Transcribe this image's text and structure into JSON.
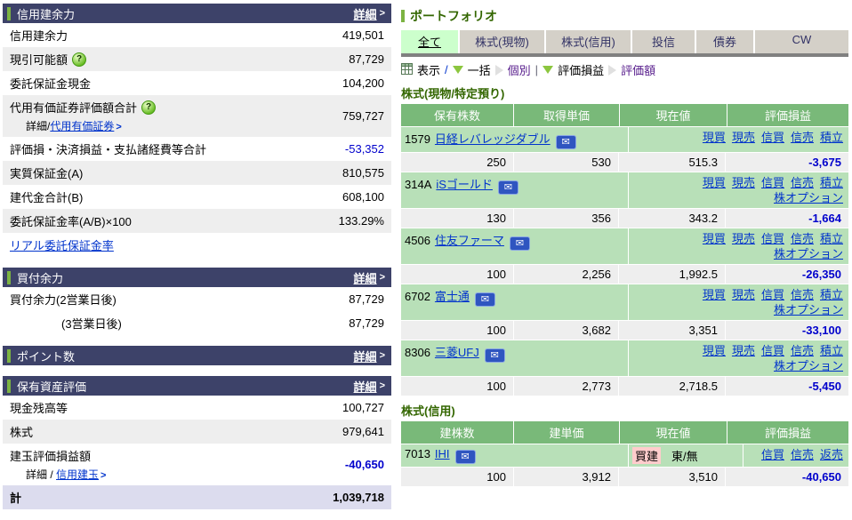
{
  "colors": {
    "header_navy": "#3d4269",
    "accent_green": "#7cb342",
    "link_blue": "#0033cc",
    "negative_blue": "#0000cc",
    "table_header_green": "#79b979",
    "name_row_green": "#b8e0b8",
    "row_gray": "#eeeeee",
    "total_row_lavender": "#dcdcee",
    "tab_selected_bg": "#ccffcc",
    "tab_bg": "#d4d0c8",
    "section_title_green": "#336600",
    "badge_pink": "#ffcccc"
  },
  "left_panel": {
    "sections": [
      {
        "title": "信用建余力",
        "detail_label": "詳細",
        "rows": [
          {
            "label": "信用建余力",
            "value": "419,501"
          },
          {
            "label": "現引可能額",
            "help": true,
            "value": "87,729",
            "shade": true
          },
          {
            "label": "委託保証金現金",
            "value": "104,200"
          },
          {
            "label": "代用有価証券評価額合計",
            "help": true,
            "value": "759,727",
            "shade": true,
            "sub_prefix": "詳細/",
            "sub_link": "代用有価証券"
          },
          {
            "label": "評価損・決済損益・支払諸経費等合計",
            "value": "-53,352",
            "neg": true
          },
          {
            "label": "実質保証金(A)",
            "value": "810,575",
            "shade": true
          },
          {
            "label": "建代金合計(B)",
            "value": "608,100"
          },
          {
            "label": "委託保証金率(A/B)×100",
            "value": "133.29%",
            "shade": true
          },
          {
            "link_label": "リアル委託保証金率"
          }
        ]
      },
      {
        "title": "買付余力",
        "detail_label": "詳細",
        "rows": [
          {
            "label": "買付余力(2営業日後)",
            "value": "87,729"
          },
          {
            "label": "(3営業日後)",
            "value": "87,729",
            "indent": true
          }
        ]
      },
      {
        "title": "ポイント数",
        "detail_label": "詳細",
        "rows": []
      },
      {
        "title": "保有資産評価",
        "detail_label": "詳細",
        "rows": [
          {
            "label": "現金残高等",
            "value": "100,727"
          },
          {
            "label": "株式",
            "value": "979,641",
            "shade": true
          },
          {
            "label": "建玉評価損益額",
            "value": "-40,650",
            "neg": true,
            "bold": true,
            "sub_prefix": "詳細 / ",
            "sub_link": "信用建玉"
          },
          {
            "label": "計",
            "value": "1,039,718",
            "total": true
          }
        ]
      }
    ]
  },
  "portfolio": {
    "title": "ポートフォリオ",
    "tabs": [
      {
        "label": "全て",
        "selected": true
      },
      {
        "label": "株式(現物)"
      },
      {
        "label": "株式(信用)"
      },
      {
        "label": "投信"
      },
      {
        "label": "債券"
      },
      {
        "label": "CW"
      }
    ],
    "toolbar": {
      "display_label": "表示",
      "slash": "/",
      "batch_label": "一括",
      "individual_label": "個別",
      "separator": "|",
      "pl_label": "評価損益",
      "value_label": "評価額"
    },
    "cash_section": {
      "title": "株式(現物/特定預り)",
      "columns": [
        "保有株数",
        "取得単価",
        "現在値",
        "評価損益"
      ],
      "action_links": [
        "現買",
        "現売",
        "信買",
        "信売",
        "積立"
      ],
      "option_link": "株オプション",
      "stocks": [
        {
          "code": "1579",
          "name": "日経レバレッジダブル",
          "qty": "250",
          "cost": "530",
          "price": "515.3",
          "pl": "-3,675",
          "option": false
        },
        {
          "code": "314A",
          "name": "iSゴールド",
          "qty": "130",
          "cost": "356",
          "price": "343.2",
          "pl": "-1,664",
          "option": true
        },
        {
          "code": "4506",
          "name": "住友ファーマ",
          "qty": "100",
          "cost": "2,256",
          "price": "1,992.5",
          "pl": "-26,350",
          "option": true
        },
        {
          "code": "6702",
          "name": "富士通",
          "qty": "100",
          "cost": "3,682",
          "price": "3,351",
          "pl": "-33,100",
          "option": true
        },
        {
          "code": "8306",
          "name": "三菱UFJ",
          "qty": "100",
          "cost": "2,773",
          "price": "2,718.5",
          "pl": "-5,450",
          "option": true
        }
      ]
    },
    "margin_section": {
      "title": "株式(信用)",
      "columns": [
        "建株数",
        "建単価",
        "現在値",
        "評価損益"
      ],
      "stocks": [
        {
          "code": "7013",
          "name": "IHI",
          "badge": "買建",
          "market": "東/無",
          "qty": "100",
          "cost": "3,912",
          "price": "3,510",
          "pl": "-40,650",
          "action_links": [
            "信買",
            "信売",
            "返売"
          ]
        }
      ]
    }
  }
}
